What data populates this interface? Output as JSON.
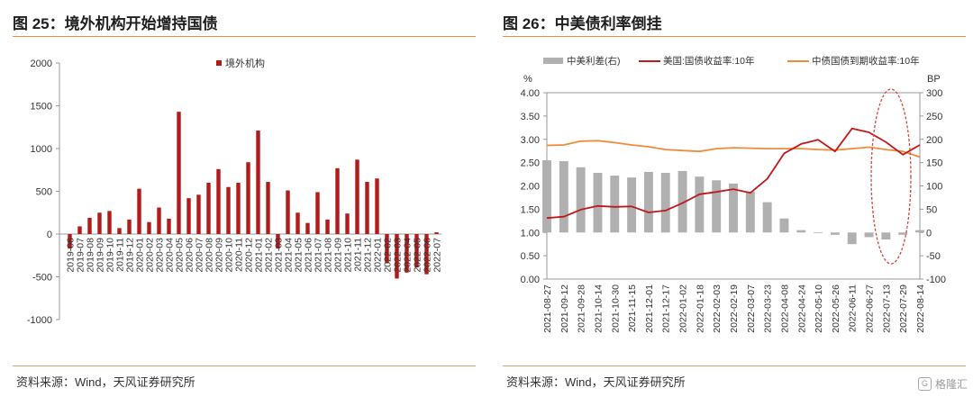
{
  "left": {
    "title": "图 25：境外机构开始增持国债",
    "source": "资料来源：Wind，天风证券研究所",
    "chart_data": {
      "type": "bar",
      "legend": [
        "境外机构"
      ],
      "legend_position": "top",
      "colors": {
        "bar": "#b31b1b"
      },
      "ylim": [
        -1000,
        2000
      ],
      "yticks": [
        -1000,
        -500,
        0,
        500,
        1000,
        1500,
        2000
      ],
      "grid": false,
      "categories": [
        "2019-06",
        "2019-07",
        "2019-08",
        "2019-09",
        "2019-10",
        "2019-11",
        "2019-12",
        "2020-01",
        "2020-02",
        "2020-03",
        "2020-04",
        "2020-05",
        "2020-06",
        "2020-07",
        "2020-08",
        "2020-09",
        "2020-10",
        "2020-11",
        "2020-12",
        "2021-01",
        "2021-02",
        "2021-03",
        "2021-04",
        "2021-05",
        "2021-06",
        "2021-07",
        "2021-08",
        "2021-09",
        "2021-10",
        "2021-11",
        "2021-12",
        "2022-01",
        "2022-02",
        "2022-03",
        "2022-04",
        "2022-05",
        "2022-06",
        "2022-07"
      ],
      "series": [
        {
          "name": "境外机构",
          "values": [
            -170,
            90,
            190,
            250,
            270,
            70,
            170,
            530,
            140,
            310,
            180,
            1430,
            420,
            460,
            600,
            760,
            550,
            600,
            840,
            1210,
            610,
            -170,
            510,
            250,
            130,
            490,
            170,
            770,
            240,
            870,
            610,
            650,
            -340,
            -520,
            -450,
            -390,
            -470,
            20
          ]
        }
      ]
    }
  },
  "right": {
    "title": "图 26：中美债利率倒挂",
    "source": "资料来源：Wind，天风证券研究所",
    "watermark": "格隆汇",
    "chart_data": {
      "type": "line",
      "y_unit_left": "%",
      "y_unit_right": "BP",
      "ylim": [
        0,
        4
      ],
      "yticks": [
        "0.00",
        "0.50",
        "1.00",
        "1.50",
        "2.00",
        "2.50",
        "3.00",
        "3.50",
        "4.00"
      ],
      "ylim_right": [
        -100,
        300
      ],
      "yticks_right": [
        "-100",
        "-50",
        "0",
        "50",
        "100",
        "150",
        "200",
        "250",
        "300"
      ],
      "grid": false,
      "legend_position": "top",
      "colors": {
        "spread": "#b0b0b0",
        "us": "#c0191b",
        "cn": "#ef8b3a",
        "highlight": "#d9463a"
      },
      "x": [
        "2021-08-27",
        "2021-09-12",
        "2021-09-28",
        "2021-10-14",
        "2021-10-30",
        "2021-11-15",
        "2021-12-01",
        "2021-12-17",
        "2022-01-02",
        "2022-01-18",
        "2022-02-03",
        "2022-02-19",
        "2022-03-07",
        "2022-03-23",
        "2022-04-08",
        "2022-04-24",
        "2022-05-10",
        "2022-05-26",
        "2022-06-11",
        "2022-06-27",
        "2022-07-13",
        "2022-07-29",
        "2022-08-14"
      ],
      "series": [
        {
          "name": "中美利差(右)",
          "axis": "right",
          "type": "bar",
          "values": [
            155,
            153,
            140,
            128,
            122,
            118,
            130,
            128,
            132,
            120,
            112,
            105,
            88,
            65,
            30,
            5,
            0,
            -5,
            -25,
            -10,
            -15,
            -5,
            5
          ]
        },
        {
          "name": "美国:国债收益率:10年",
          "axis": "left",
          "type": "line",
          "values": [
            1.31,
            1.34,
            1.49,
            1.57,
            1.55,
            1.56,
            1.43,
            1.47,
            1.63,
            1.82,
            1.87,
            1.93,
            1.85,
            2.15,
            2.7,
            2.9,
            2.99,
            2.74,
            3.23,
            3.15,
            2.94,
            2.67,
            2.88
          ]
        },
        {
          "name": "中债国债到期收益率:10年",
          "axis": "left",
          "type": "line",
          "values": [
            2.87,
            2.88,
            2.96,
            2.97,
            2.93,
            2.88,
            2.84,
            2.78,
            2.76,
            2.74,
            2.8,
            2.82,
            2.81,
            2.8,
            2.8,
            2.8,
            2.78,
            2.77,
            2.8,
            2.83,
            2.78,
            2.74,
            2.62
          ]
        }
      ]
    }
  }
}
